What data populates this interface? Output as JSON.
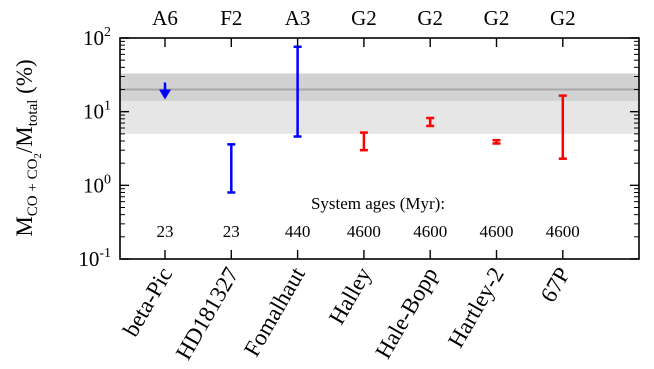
{
  "chart_data": {
    "type": "error_bar",
    "y_scale": "log",
    "ylim": [
      0.1,
      100
    ],
    "y_ticks": [
      {
        "value": 0.1,
        "base": "10",
        "exp": "-1"
      },
      {
        "value": 1,
        "base": "10",
        "exp": "0"
      },
      {
        "value": 10,
        "base": "10",
        "exp": "1"
      },
      {
        "value": 100,
        "base": "10",
        "exp": "2"
      }
    ],
    "ylabel": {
      "prefix": "M",
      "sub1": "CO + CO",
      "sub1b": "2",
      "slash": "/M",
      "sub2": "total",
      "unit": " (%)"
    },
    "categories": [
      "beta-Pic",
      "HD181327",
      "Fomalhaut",
      "Halley",
      "Hale-Bopp",
      "Hartley-2",
      "67P"
    ],
    "spectral_types": [
      "A6",
      "F2",
      "A3",
      "G2",
      "G2",
      "G2",
      "G2"
    ],
    "annotation": "System ages (Myr):",
    "ages": [
      "23",
      "23",
      "440",
      "4600",
      "4600",
      "4600",
      "4600"
    ],
    "points": [
      {
        "name": "beta-Pic",
        "kind": "upper_limit",
        "value": 20,
        "color": "#0000ff"
      },
      {
        "name": "HD181327",
        "kind": "range",
        "low": 0.8,
        "high": 3.6,
        "color": "#0000ff"
      },
      {
        "name": "Fomalhaut",
        "kind": "range",
        "low": 4.6,
        "high": 76,
        "color": "#0000ff"
      },
      {
        "name": "Halley",
        "kind": "range",
        "low": 3.0,
        "high": 5.2,
        "color": "#ff0000"
      },
      {
        "name": "Hale-Bopp",
        "kind": "range",
        "low": 6.4,
        "high": 8.2,
        "color": "#ff0000"
      },
      {
        "name": "Hartley-2",
        "kind": "range",
        "low": 3.7,
        "high": 4.1,
        "color": "#ff0000"
      },
      {
        "name": "67P",
        "kind": "range",
        "low": 2.3,
        "high": 16.5,
        "color": "#ff0000"
      }
    ],
    "bands": [
      {
        "low": 5,
        "high": 33,
        "color": "#e6e6e6"
      },
      {
        "low": 14,
        "high": 33,
        "color": "#d2d2d2"
      }
    ],
    "reference_line": {
      "value": 20,
      "color": "#a8a8a8"
    },
    "grid": false,
    "legend": "none"
  }
}
